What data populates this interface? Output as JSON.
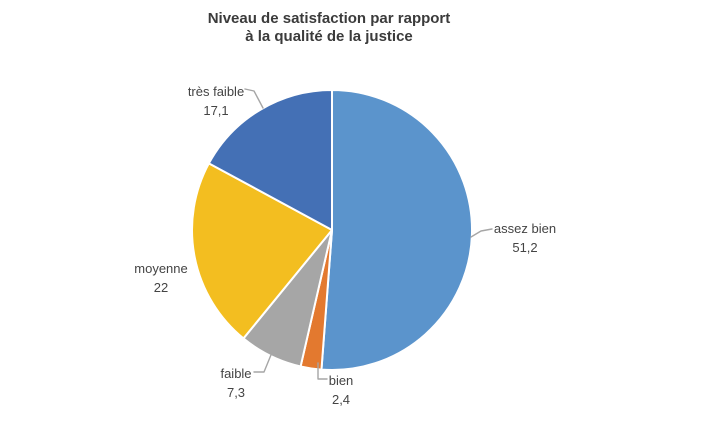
{
  "title": {
    "line1": "Niveau de satisfaction par rapport",
    "line2": "à la qualité de la justice"
  },
  "chart_data": {
    "type": "pie",
    "title": "Niveau de satisfaction par rapport à la qualité de la justice",
    "categories": [
      "assez bien",
      "bien",
      "faible",
      "moyenne",
      "très faible"
    ],
    "values": [
      51.2,
      2.4,
      7.3,
      22,
      17.1
    ],
    "display_values": [
      "51,2",
      "2,4",
      "7,3",
      "22",
      "17,1"
    ],
    "colors": [
      "#5B94CC",
      "#E3792F",
      "#A6A6A6",
      "#F3BE20",
      "#4470B5"
    ],
    "start_angle_deg": 0,
    "direction": "clockwise",
    "slice_border_color": "#FFFFFF",
    "legend": "none",
    "labels": "callout labels with values",
    "leader_line_color": "#A6A6A6",
    "background": "#FFFFFF",
    "text_color": "#444444",
    "title_color": "#3B3B3B"
  }
}
